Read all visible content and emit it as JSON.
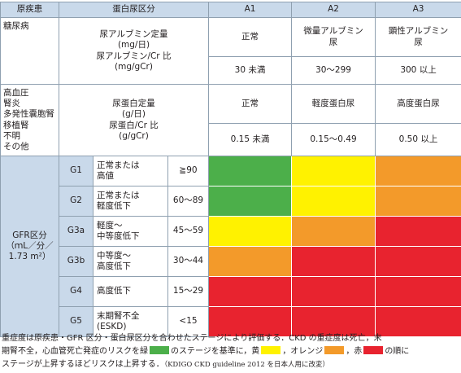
{
  "colors": {
    "green": "#4caf4a",
    "yellow": "#fff200",
    "orange": "#f39a2a",
    "red": "#e8232f",
    "header_bg": "#c9d9ea"
  },
  "header": {
    "cause": "原疾患",
    "protein": "蛋白尿区分",
    "a1": "A1",
    "a2": "A2",
    "a3": "A3"
  },
  "diabetes": {
    "cause": "糖尿病",
    "unit_lines": [
      "尿アルブミン定量",
      "(mg/日)",
      "尿アルブミン/Cr 比",
      "(mg/gCr)"
    ],
    "cat_a1": "正常",
    "cat_a2_lines": [
      "微量アルブミン",
      "尿"
    ],
    "cat_a3_lines": [
      "顕性アルブミン",
      "尿"
    ],
    "val_a1": "30 未満",
    "val_a2": "30〜299",
    "val_a3": "300 以上"
  },
  "other": {
    "cause_lines": [
      "高血圧",
      "腎炎",
      "多発性嚢胞腎",
      "移植腎",
      "不明",
      "その他"
    ],
    "unit_lines": [
      "尿蛋白定量",
      "(g/日)",
      "尿蛋白/Cr 比",
      "(g/gCr)"
    ],
    "cat_a1": "正常",
    "cat_a2": "軽度蛋白尿",
    "cat_a3": "高度蛋白尿",
    "val_a1": "0.15 未満",
    "val_a2": "0.15〜0.49",
    "val_a3": "0.50 以上"
  },
  "gfr_label_lines": [
    "GFR区分",
    "（ｍL／分／",
    "1.73 m²）"
  ],
  "stages": [
    {
      "code": "G1",
      "desc": [
        "正常または",
        "高値"
      ],
      "range": "≧90",
      "risk": [
        "green",
        "yellow",
        "orange"
      ]
    },
    {
      "code": "G2",
      "desc": [
        "正常または",
        "軽度低下"
      ],
      "range": "60〜89",
      "risk": [
        "green",
        "yellow",
        "orange"
      ]
    },
    {
      "code": "G3a",
      "desc": [
        "軽度〜",
        "中等度低下"
      ],
      "range": "45〜59",
      "risk": [
        "yellow",
        "orange",
        "red"
      ]
    },
    {
      "code": "G3b",
      "desc": [
        "中等度〜",
        "高度低下"
      ],
      "range": "30〜44",
      "risk": [
        "orange",
        "red",
        "red"
      ]
    },
    {
      "code": "G4",
      "desc": [
        "高度低下"
      ],
      "range": "15〜29",
      "risk": [
        "red",
        "red",
        "red"
      ]
    },
    {
      "code": "G5",
      "desc": [
        "末期腎不全",
        "(ESKD)"
      ],
      "range": "<15",
      "risk": [
        "red",
        "red",
        "red"
      ]
    }
  ],
  "note": {
    "line1": "重症度は原疾患・GFR 区分・蛋白尿区分を合わせたステージにより評価する．CKD の重症度は死亡，末",
    "line2_a": "期腎不全，心血管死亡発症のリスクを緑",
    "line2_b": "のステージを基準に，黄",
    "line2_c": "，オレンジ",
    "line2_d": "，赤",
    "line2_e": "の順に",
    "line3_a": "ステージが上昇するほどリスクは上昇する．",
    "line3_b": "（KDIGO CKD guideline 2012 を日本人用に改変）"
  }
}
